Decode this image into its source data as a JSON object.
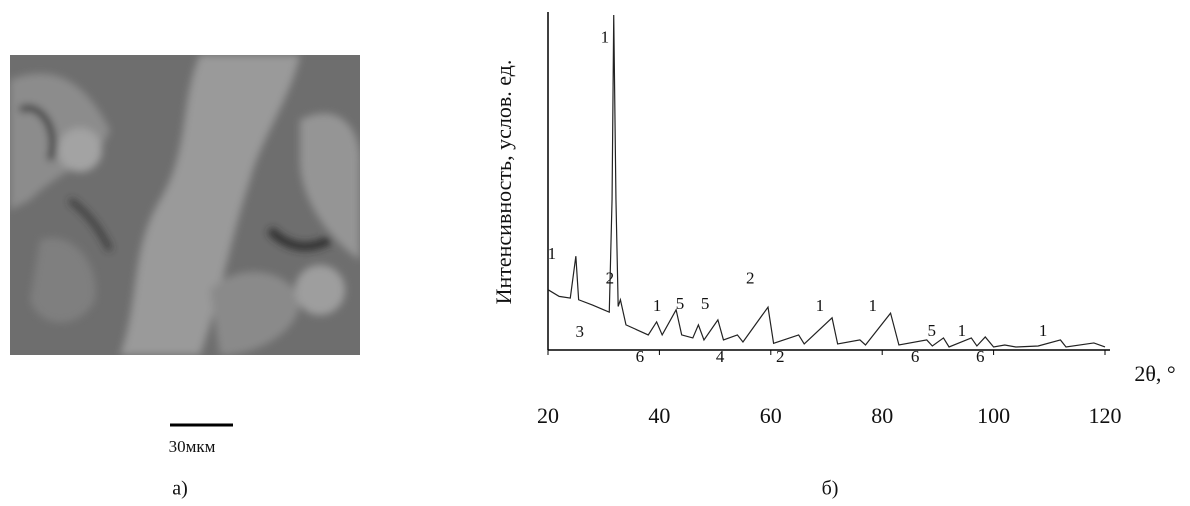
{
  "panel_a": {
    "scale_bar_label": "30мкм",
    "caption": "а)"
  },
  "chart_data": {
    "type": "line",
    "caption": "б)",
    "x_label": "2θ, °",
    "y_label": "Интенсивность, услов. ед.",
    "x": [
      20,
      22,
      24,
      25,
      25.5,
      28,
      30,
      31,
      31.5,
      31.8,
      32.2,
      32.6,
      33,
      34,
      36,
      38,
      39.5,
      40.5,
      43,
      44,
      46,
      47,
      48,
      50.5,
      51.5,
      54,
      55,
      59.5,
      60.5,
      65,
      66,
      71,
      72,
      76,
      77,
      81.5,
      83,
      88,
      89,
      91,
      92,
      96,
      97,
      98.5,
      100,
      102,
      104,
      108,
      112,
      113,
      118,
      120
    ],
    "values": [
      18,
      16,
      15.5,
      28,
      15,
      13.4,
      12,
      11.3,
      45,
      100,
      45,
      13,
      15,
      7.5,
      6,
      4.5,
      8.4,
      4.5,
      12,
      4.5,
      3.6,
      7.5,
      3,
      9,
      3,
      4.5,
      2.4,
      12.8,
      2,
      4.5,
      1.8,
      9.6,
      1.8,
      3,
      1.5,
      11,
      1.5,
      3,
      1.2,
      3.6,
      0.9,
      3.6,
      1.2,
      3.9,
      0.9,
      1.5,
      0.9,
      1.2,
      3,
      0.9,
      2.1,
      0.9
    ],
    "color": "#222222",
    "xlim": [
      20,
      120
    ],
    "xticks": [
      20,
      40,
      60,
      80,
      100,
      120
    ],
    "ylim": [
      0,
      100
    ],
    "annotations": [
      {
        "text": "1",
        "x": 20.7,
        "y": 28.4
      },
      {
        "text": "1",
        "x": 30.2,
        "y": 93
      },
      {
        "text": "2",
        "x": 31.1,
        "y": 21
      },
      {
        "text": "3",
        "x": 25.7,
        "y": 5
      },
      {
        "text": "6",
        "x": 36.5,
        "y": -2.4
      },
      {
        "text": "1",
        "x": 39.6,
        "y": 12.8
      },
      {
        "text": "5",
        "x": 43.7,
        "y": 13.4
      },
      {
        "text": "5",
        "x": 48.2,
        "y": 13.4
      },
      {
        "text": "4",
        "x": 50.9,
        "y": -2.4
      },
      {
        "text": "2",
        "x": 56.3,
        "y": 21
      },
      {
        "text": "2",
        "x": 61.7,
        "y": -2.4
      },
      {
        "text": "1",
        "x": 68.8,
        "y": 12.8
      },
      {
        "text": "1",
        "x": 78.3,
        "y": 12.8
      },
      {
        "text": "6",
        "x": 85.9,
        "y": -2.4
      },
      {
        "text": "5",
        "x": 88.9,
        "y": 5.4
      },
      {
        "text": "1",
        "x": 94.3,
        "y": 5.4
      },
      {
        "text": "6",
        "x": 97.6,
        "y": -2.4
      },
      {
        "text": "1",
        "x": 108.9,
        "y": 5.4
      }
    ]
  }
}
